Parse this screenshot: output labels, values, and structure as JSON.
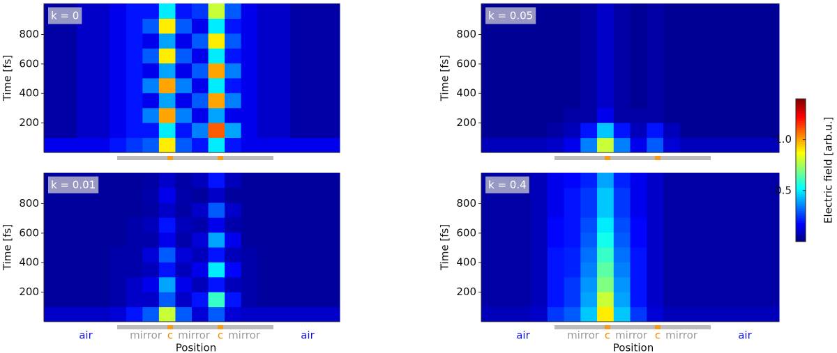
{
  "chart_data": [
    {
      "type": "heatmap",
      "label": "k = 0",
      "ylabel": "Time [fs]",
      "ylim": [
        0,
        1010
      ],
      "yticks": [
        200,
        400,
        600,
        800
      ],
      "z": [
        [
          0.15,
          0.15,
          0.15,
          0.15,
          0.2,
          0.25,
          0.3,
          0.9,
          0.3,
          0.2,
          0.5,
          0.2,
          0.15,
          0.15,
          0.15,
          0.15,
          0.15,
          0.15
        ],
        [
          0.05,
          0.05,
          0.1,
          0.1,
          0.15,
          0.2,
          0.2,
          0.5,
          0.2,
          0.35,
          1.1,
          0.4,
          0.15,
          0.1,
          0.1,
          0.05,
          0.05,
          0.05
        ],
        [
          0.05,
          0.05,
          0.1,
          0.1,
          0.15,
          0.2,
          0.35,
          1.0,
          0.35,
          0.15,
          0.4,
          0.15,
          0.15,
          0.1,
          0.1,
          0.05,
          0.05,
          0.05
        ],
        [
          0.05,
          0.05,
          0.1,
          0.1,
          0.15,
          0.2,
          0.15,
          0.4,
          0.15,
          0.3,
          1.0,
          0.35,
          0.15,
          0.1,
          0.1,
          0.05,
          0.05,
          0.05
        ],
        [
          0.05,
          0.05,
          0.1,
          0.1,
          0.15,
          0.2,
          0.35,
          1.0,
          0.35,
          0.15,
          0.5,
          0.2,
          0.15,
          0.1,
          0.1,
          0.05,
          0.05,
          0.05
        ],
        [
          0.05,
          0.05,
          0.1,
          0.1,
          0.15,
          0.2,
          0.15,
          0.4,
          0.15,
          0.3,
          1.0,
          0.35,
          0.15,
          0.1,
          0.1,
          0.05,
          0.05,
          0.05
        ],
        [
          0.05,
          0.05,
          0.1,
          0.1,
          0.15,
          0.2,
          0.3,
          0.9,
          0.3,
          0.15,
          0.5,
          0.2,
          0.15,
          0.1,
          0.1,
          0.05,
          0.05,
          0.05
        ],
        [
          0.05,
          0.05,
          0.1,
          0.1,
          0.15,
          0.2,
          0.15,
          0.4,
          0.15,
          0.3,
          0.9,
          0.3,
          0.15,
          0.1,
          0.1,
          0.05,
          0.05,
          0.05
        ],
        [
          0.05,
          0.05,
          0.1,
          0.1,
          0.15,
          0.2,
          0.3,
          0.9,
          0.3,
          0.15,
          0.5,
          0.2,
          0.15,
          0.1,
          0.1,
          0.05,
          0.05,
          0.05
        ],
        [
          0.05,
          0.05,
          0.1,
          0.1,
          0.15,
          0.2,
          0.2,
          0.5,
          0.2,
          0.25,
          0.8,
          0.3,
          0.15,
          0.1,
          0.1,
          0.05,
          0.05,
          0.05
        ]
      ]
    },
    {
      "type": "heatmap",
      "label": "k = 0.05",
      "ylabel": "Time [fs]",
      "ylim": [
        0,
        1010
      ],
      "yticks": [
        200,
        400,
        600,
        800
      ],
      "z": [
        [
          0.08,
          0.08,
          0.08,
          0.08,
          0.1,
          0.15,
          0.35,
          0.8,
          0.35,
          0.15,
          0.3,
          0.12,
          0.08,
          0.08,
          0.08,
          0.08,
          0.08,
          0.08
        ],
        [
          0.03,
          0.03,
          0.03,
          0.03,
          0.05,
          0.08,
          0.2,
          0.45,
          0.2,
          0.08,
          0.2,
          0.08,
          0.03,
          0.03,
          0.03,
          0.03,
          0.03,
          0.03
        ],
        [
          0.03,
          0.03,
          0.03,
          0.03,
          0.03,
          0.05,
          0.05,
          0.15,
          0.05,
          0.05,
          0.05,
          0.03,
          0.03,
          0.03,
          0.03,
          0.03,
          0.03,
          0.03
        ],
        [
          0.03,
          0.03,
          0.03,
          0.03,
          0.03,
          0.03,
          0.05,
          0.1,
          0.05,
          0.03,
          0.05,
          0.03,
          0.03,
          0.03,
          0.03,
          0.03,
          0.03,
          0.03
        ],
        [
          0.03,
          0.03,
          0.03,
          0.03,
          0.03,
          0.03,
          0.05,
          0.1,
          0.05,
          0.03,
          0.05,
          0.03,
          0.03,
          0.03,
          0.03,
          0.03,
          0.03,
          0.03
        ],
        [
          0.03,
          0.03,
          0.03,
          0.03,
          0.03,
          0.03,
          0.05,
          0.1,
          0.05,
          0.03,
          0.05,
          0.03,
          0.03,
          0.03,
          0.03,
          0.03,
          0.03,
          0.03
        ],
        [
          0.03,
          0.03,
          0.03,
          0.03,
          0.03,
          0.03,
          0.05,
          0.1,
          0.05,
          0.03,
          0.05,
          0.03,
          0.03,
          0.03,
          0.03,
          0.03,
          0.03,
          0.03
        ],
        [
          0.03,
          0.03,
          0.03,
          0.03,
          0.03,
          0.03,
          0.05,
          0.1,
          0.05,
          0.03,
          0.05,
          0.03,
          0.03,
          0.03,
          0.03,
          0.03,
          0.03,
          0.03
        ],
        [
          0.03,
          0.03,
          0.03,
          0.03,
          0.03,
          0.03,
          0.05,
          0.1,
          0.05,
          0.03,
          0.05,
          0.03,
          0.03,
          0.03,
          0.03,
          0.03,
          0.03,
          0.03
        ],
        [
          0.03,
          0.03,
          0.03,
          0.03,
          0.03,
          0.03,
          0.05,
          0.1,
          0.05,
          0.03,
          0.05,
          0.03,
          0.03,
          0.03,
          0.03,
          0.03,
          0.03,
          0.03
        ]
      ]
    },
    {
      "type": "heatmap",
      "label": "k = 0.01",
      "ylabel": "Time [fs]",
      "ylim": [
        0,
        1010
      ],
      "yticks": [
        200,
        400,
        600,
        800
      ],
      "xlabel": "Position",
      "regions": [
        "air",
        "mirror",
        "c",
        "mirror",
        "c",
        "mirror",
        "air"
      ],
      "region_colors": [
        "#1010e0",
        "#999999",
        "#f08a00",
        "#999999",
        "#f08a00",
        "#999999",
        "#1010e0"
      ],
      "z": [
        [
          0.1,
          0.1,
          0.1,
          0.1,
          0.12,
          0.2,
          0.3,
          0.8,
          0.3,
          0.12,
          0.3,
          0.12,
          0.1,
          0.1,
          0.1,
          0.1,
          0.1,
          0.1
        ],
        [
          0.04,
          0.04,
          0.04,
          0.04,
          0.06,
          0.1,
          0.1,
          0.3,
          0.1,
          0.2,
          0.6,
          0.2,
          0.06,
          0.04,
          0.04,
          0.04,
          0.04,
          0.04
        ],
        [
          0.04,
          0.04,
          0.04,
          0.04,
          0.06,
          0.1,
          0.15,
          0.4,
          0.15,
          0.08,
          0.2,
          0.08,
          0.06,
          0.04,
          0.04,
          0.04,
          0.04,
          0.04
        ],
        [
          0.04,
          0.04,
          0.04,
          0.04,
          0.06,
          0.06,
          0.08,
          0.2,
          0.08,
          0.15,
          0.5,
          0.18,
          0.06,
          0.04,
          0.04,
          0.04,
          0.04,
          0.04
        ],
        [
          0.04,
          0.04,
          0.04,
          0.04,
          0.06,
          0.06,
          0.12,
          0.3,
          0.12,
          0.08,
          0.2,
          0.08,
          0.06,
          0.04,
          0.04,
          0.04,
          0.04,
          0.04
        ],
        [
          0.04,
          0.04,
          0.04,
          0.04,
          0.04,
          0.06,
          0.06,
          0.15,
          0.06,
          0.12,
          0.4,
          0.15,
          0.04,
          0.04,
          0.04,
          0.04,
          0.04,
          0.04
        ],
        [
          0.04,
          0.04,
          0.04,
          0.04,
          0.04,
          0.06,
          0.08,
          0.2,
          0.08,
          0.06,
          0.15,
          0.06,
          0.04,
          0.04,
          0.04,
          0.04,
          0.04,
          0.04
        ],
        [
          0.04,
          0.04,
          0.04,
          0.04,
          0.04,
          0.04,
          0.05,
          0.1,
          0.05,
          0.1,
          0.3,
          0.1,
          0.04,
          0.04,
          0.04,
          0.04,
          0.04,
          0.04
        ],
        [
          0.04,
          0.04,
          0.04,
          0.04,
          0.04,
          0.04,
          0.06,
          0.15,
          0.06,
          0.04,
          0.1,
          0.04,
          0.04,
          0.04,
          0.04,
          0.04,
          0.04,
          0.04
        ],
        [
          0.04,
          0.04,
          0.04,
          0.04,
          0.04,
          0.04,
          0.05,
          0.1,
          0.05,
          0.08,
          0.2,
          0.08,
          0.04,
          0.04,
          0.04,
          0.04,
          0.04,
          0.04
        ]
      ]
    },
    {
      "type": "heatmap",
      "label": "k = 0.4",
      "ylabel": "Time [fs]",
      "ylim": [
        0,
        1010
      ],
      "yticks": [
        200,
        400,
        600,
        800
      ],
      "xlabel": "Position",
      "regions": [
        "air",
        "mirror",
        "c",
        "mirror",
        "c",
        "mirror",
        "air"
      ],
      "region_colors": [
        "#1010e0",
        "#999999",
        "#f08a00",
        "#999999",
        "#f08a00",
        "#999999",
        "#1010e0"
      ],
      "z": [
        [
          0.08,
          0.08,
          0.08,
          0.1,
          0.25,
          0.3,
          0.45,
          0.9,
          0.45,
          0.25,
          0.12,
          0.08,
          0.08,
          0.08,
          0.08,
          0.08,
          0.08,
          0.08
        ],
        [
          0.05,
          0.05,
          0.05,
          0.08,
          0.2,
          0.25,
          0.4,
          0.8,
          0.4,
          0.2,
          0.1,
          0.05,
          0.05,
          0.05,
          0.05,
          0.05,
          0.05,
          0.05
        ],
        [
          0.05,
          0.05,
          0.05,
          0.08,
          0.2,
          0.25,
          0.38,
          0.7,
          0.38,
          0.2,
          0.1,
          0.05,
          0.05,
          0.05,
          0.05,
          0.05,
          0.05,
          0.05
        ],
        [
          0.05,
          0.05,
          0.05,
          0.08,
          0.2,
          0.22,
          0.35,
          0.65,
          0.35,
          0.2,
          0.1,
          0.05,
          0.05,
          0.05,
          0.05,
          0.05,
          0.05,
          0.05
        ],
        [
          0.05,
          0.05,
          0.05,
          0.08,
          0.2,
          0.22,
          0.33,
          0.6,
          0.33,
          0.2,
          0.1,
          0.05,
          0.05,
          0.05,
          0.05,
          0.05,
          0.05,
          0.05
        ],
        [
          0.05,
          0.05,
          0.05,
          0.08,
          0.18,
          0.2,
          0.3,
          0.55,
          0.3,
          0.18,
          0.1,
          0.05,
          0.05,
          0.05,
          0.05,
          0.05,
          0.05,
          0.05
        ],
        [
          0.05,
          0.05,
          0.05,
          0.08,
          0.18,
          0.2,
          0.28,
          0.5,
          0.28,
          0.18,
          0.1,
          0.05,
          0.05,
          0.05,
          0.05,
          0.05,
          0.05,
          0.05
        ],
        [
          0.05,
          0.05,
          0.05,
          0.08,
          0.15,
          0.2,
          0.25,
          0.45,
          0.25,
          0.15,
          0.1,
          0.05,
          0.05,
          0.05,
          0.05,
          0.05,
          0.05,
          0.05
        ],
        [
          0.05,
          0.05,
          0.05,
          0.08,
          0.15,
          0.2,
          0.25,
          0.45,
          0.25,
          0.15,
          0.1,
          0.05,
          0.05,
          0.05,
          0.05,
          0.05,
          0.05,
          0.05
        ],
        [
          0.05,
          0.05,
          0.05,
          0.08,
          0.15,
          0.18,
          0.22,
          0.4,
          0.22,
          0.15,
          0.1,
          0.05,
          0.05,
          0.05,
          0.05,
          0.05,
          0.05,
          0.05
        ]
      ]
    }
  ],
  "colorbar": {
    "label": "Electric field [arb.u.]",
    "colormap": "jet",
    "clim": [
      0,
      1.4
    ],
    "ticks": [
      0.5,
      {
        "value": 1,
        "label": "1.0"
      }
    ]
  }
}
